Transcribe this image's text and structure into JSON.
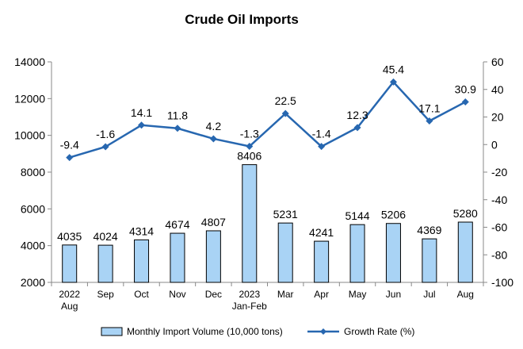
{
  "chart_data": {
    "type": "bar",
    "title": "Crude Oil Imports",
    "categories": [
      [
        "2022",
        "Aug"
      ],
      [
        "Sep"
      ],
      [
        "Oct"
      ],
      [
        "Nov"
      ],
      [
        "Dec"
      ],
      [
        "2023",
        "Jan-Feb"
      ],
      [
        "Mar"
      ],
      [
        "Apr"
      ],
      [
        "May"
      ],
      [
        "Jun"
      ],
      [
        "Jul"
      ],
      [
        "Aug"
      ]
    ],
    "series": [
      {
        "name": "Monthly Import Volume (10,000 tons)",
        "type": "bar",
        "axis": "left",
        "color": "#a9d3f5",
        "values": [
          4035,
          4024,
          4314,
          4674,
          4807,
          8406,
          5231,
          4241,
          5144,
          5206,
          4369,
          5280
        ]
      },
      {
        "name": "Growth Rate (%)",
        "type": "line",
        "axis": "right",
        "color": "#2767b0",
        "values": [
          -9.4,
          -1.6,
          14.1,
          11.8,
          4.2,
          -1.3,
          22.5,
          -1.4,
          12.3,
          45.4,
          17.1,
          30.9
        ]
      }
    ],
    "ylim_left": [
      2000,
      14000
    ],
    "yticks_left": [
      2000,
      4000,
      6000,
      8000,
      10000,
      12000,
      14000
    ],
    "ylim_right": [
      -100,
      60
    ],
    "yticks_right": [
      -100,
      -80,
      -60,
      -40,
      -20,
      0,
      20,
      40,
      60
    ],
    "grid": false,
    "legend_position": "bottom"
  }
}
